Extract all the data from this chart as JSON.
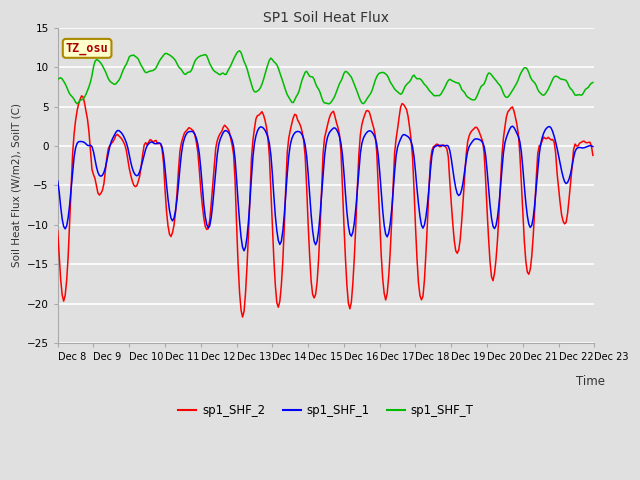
{
  "title": "SP1 Soil Heat Flux",
  "ylabel": "Soil Heat Flux (W/m2), SoilT (C)",
  "xlabel": "Time",
  "ylim": [
    -25,
    15
  ],
  "yticks": [
    -25,
    -20,
    -15,
    -10,
    -5,
    0,
    5,
    10,
    15
  ],
  "bg_color": "#e0e0e0",
  "grid_color": "#ffffff",
  "tz_label": "TZ_osu",
  "tz_bg": "#ffffcc",
  "tz_border": "#aa8800",
  "tz_text_color": "#aa0000",
  "legend_entries": [
    "sp1_SHF_2",
    "sp1_SHF_1",
    "sp1_SHF_T"
  ],
  "line_colors": [
    "#ff0000",
    "#0000ff",
    "#00bb00"
  ],
  "x_tick_labels": [
    "Dec 8",
    "Dec 9",
    "Dec 10",
    "Dec 11",
    "Dec 12",
    "Dec 13",
    "Dec 14",
    "Dec 15",
    "Dec 16",
    "Dec 17",
    "Dec 18",
    "Dec 19",
    "Dec 20",
    "Dec 21",
    "Dec 22",
    "Dec 23"
  ],
  "num_days": 15,
  "hours_per_day": 24,
  "figsize": [
    6.4,
    4.8
  ],
  "dpi": 100
}
